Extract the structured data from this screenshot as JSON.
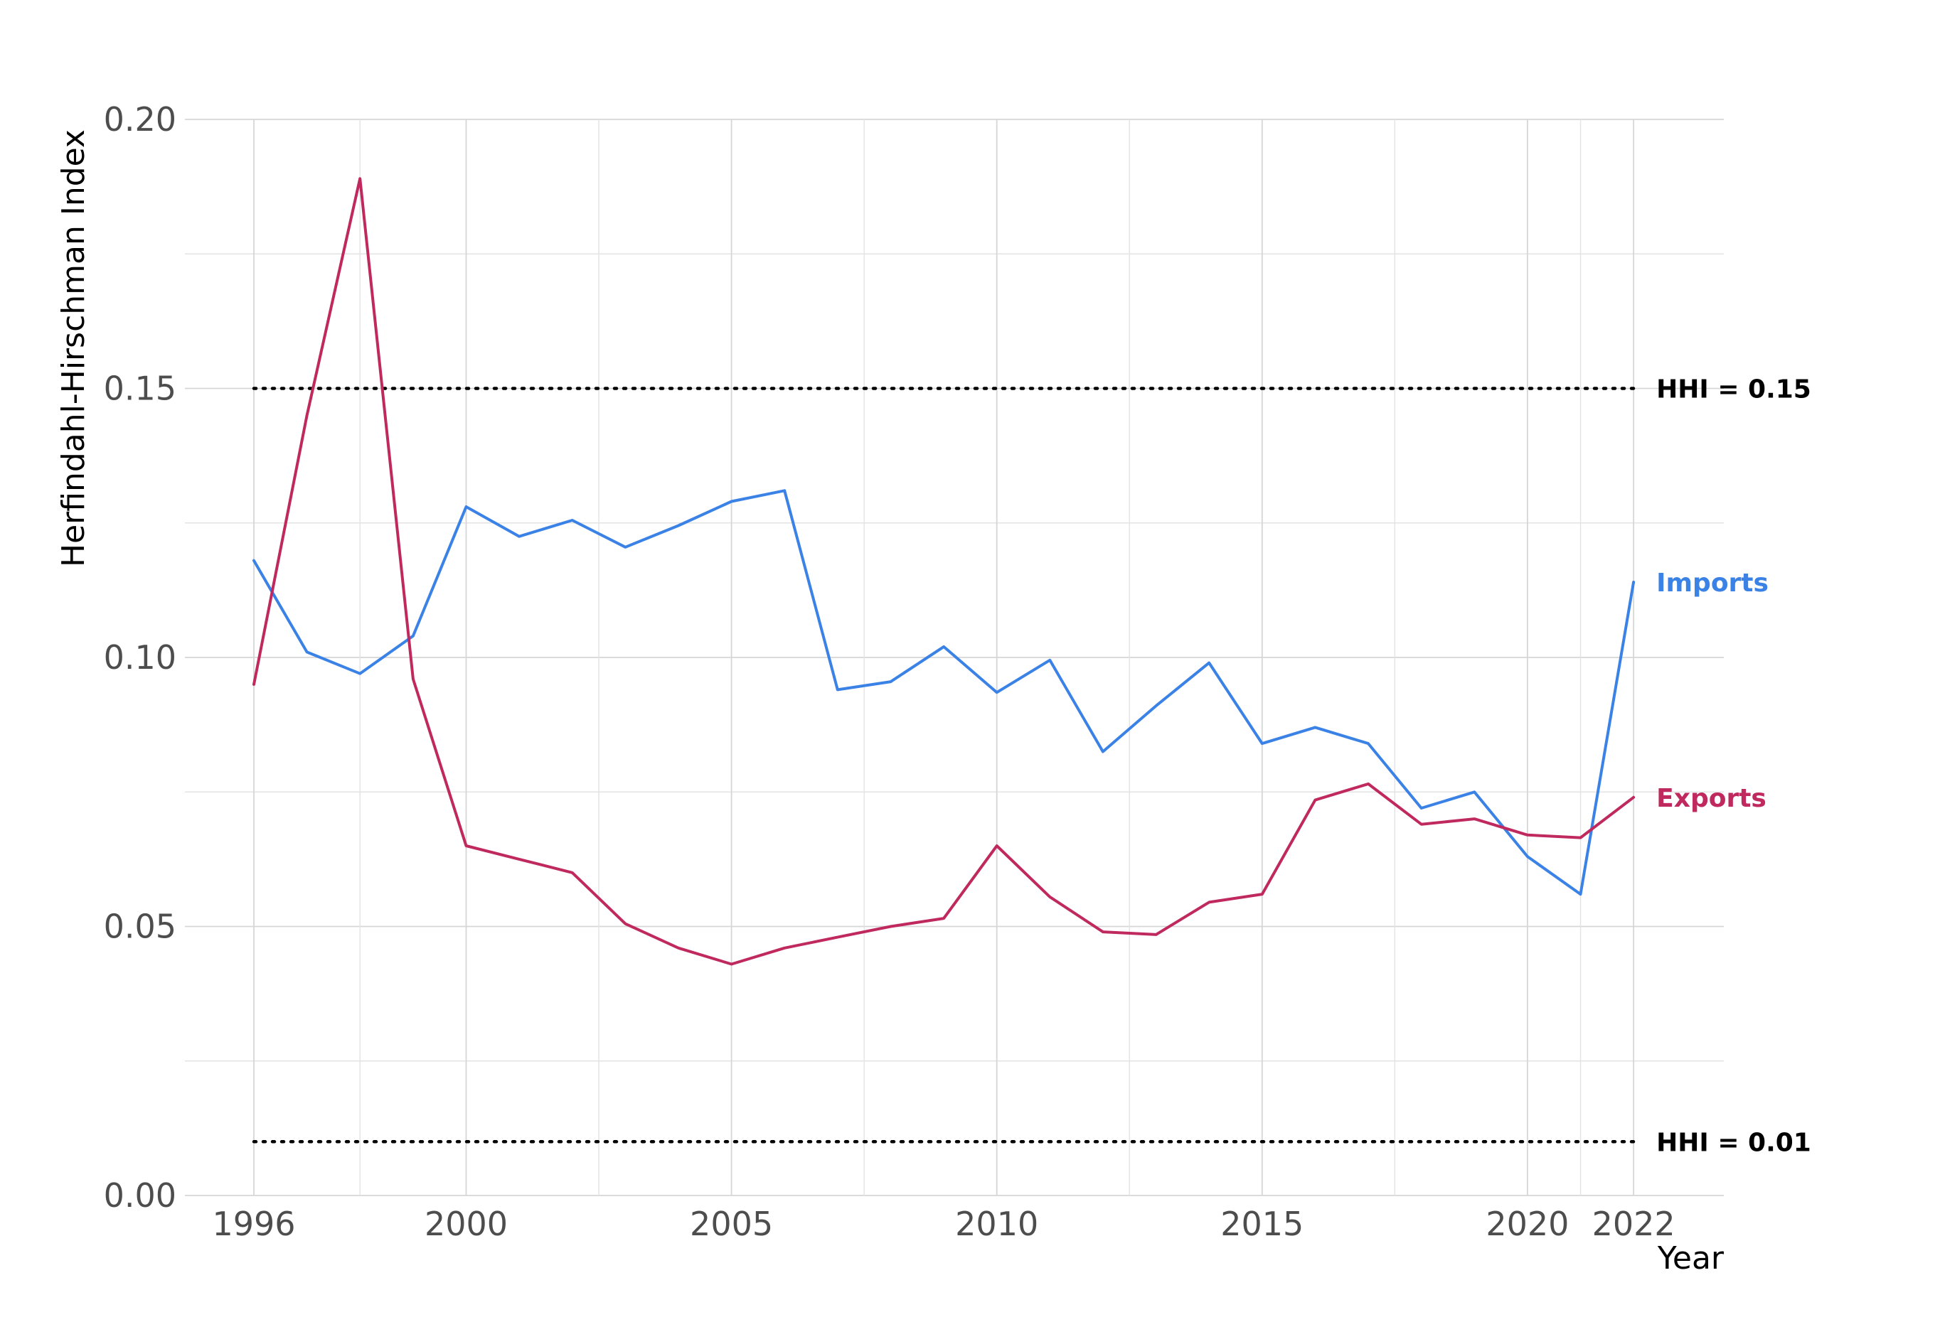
{
  "chart_data": {
    "type": "line",
    "title": "",
    "xlabel": "Year",
    "ylabel": "Herfindahl-Hirschman Index",
    "x": [
      1996,
      1997,
      1998,
      1999,
      2000,
      2001,
      2002,
      2003,
      2004,
      2005,
      2006,
      2007,
      2008,
      2009,
      2010,
      2011,
      2012,
      2013,
      2014,
      2015,
      2016,
      2017,
      2018,
      2019,
      2020,
      2021,
      2022
    ],
    "xlim": [
      1994.7,
      2023.7
    ],
    "ylim": [
      0,
      0.2
    ],
    "x_ticks": [
      "1996",
      "2000",
      "2005",
      "2010",
      "2015",
      "2020",
      "2022"
    ],
    "y_ticks": [
      "0.00",
      "0.05",
      "0.10",
      "0.15",
      "0.20"
    ],
    "grid": true,
    "legend": "direct labels at line ends (right)",
    "series": [
      {
        "name": "Imports",
        "color": "#3b82e6",
        "values": [
          0.118,
          0.101,
          0.097,
          0.104,
          0.128,
          0.1225,
          0.1255,
          0.1205,
          0.1245,
          0.129,
          0.131,
          0.094,
          0.0955,
          0.102,
          0.0935,
          0.0995,
          0.0825,
          0.091,
          0.099,
          0.084,
          0.087,
          0.084,
          0.072,
          0.075,
          0.063,
          0.056,
          0.114
        ]
      },
      {
        "name": "Exports",
        "color": "#c0295e",
        "values": [
          0.095,
          0.145,
          0.189,
          0.096,
          0.065,
          0.0625,
          0.06,
          0.0505,
          0.046,
          0.043,
          0.046,
          0.048,
          0.05,
          0.0515,
          0.065,
          0.0555,
          0.049,
          0.0485,
          0.0545,
          0.056,
          0.0735,
          0.0765,
          0.069,
          0.07,
          0.067,
          0.0665,
          0.074
        ]
      }
    ],
    "reference_lines": [
      {
        "label": "HHI = 0.15",
        "value": 0.15
      },
      {
        "label": "HHI = 0.01",
        "value": 0.01
      }
    ]
  }
}
